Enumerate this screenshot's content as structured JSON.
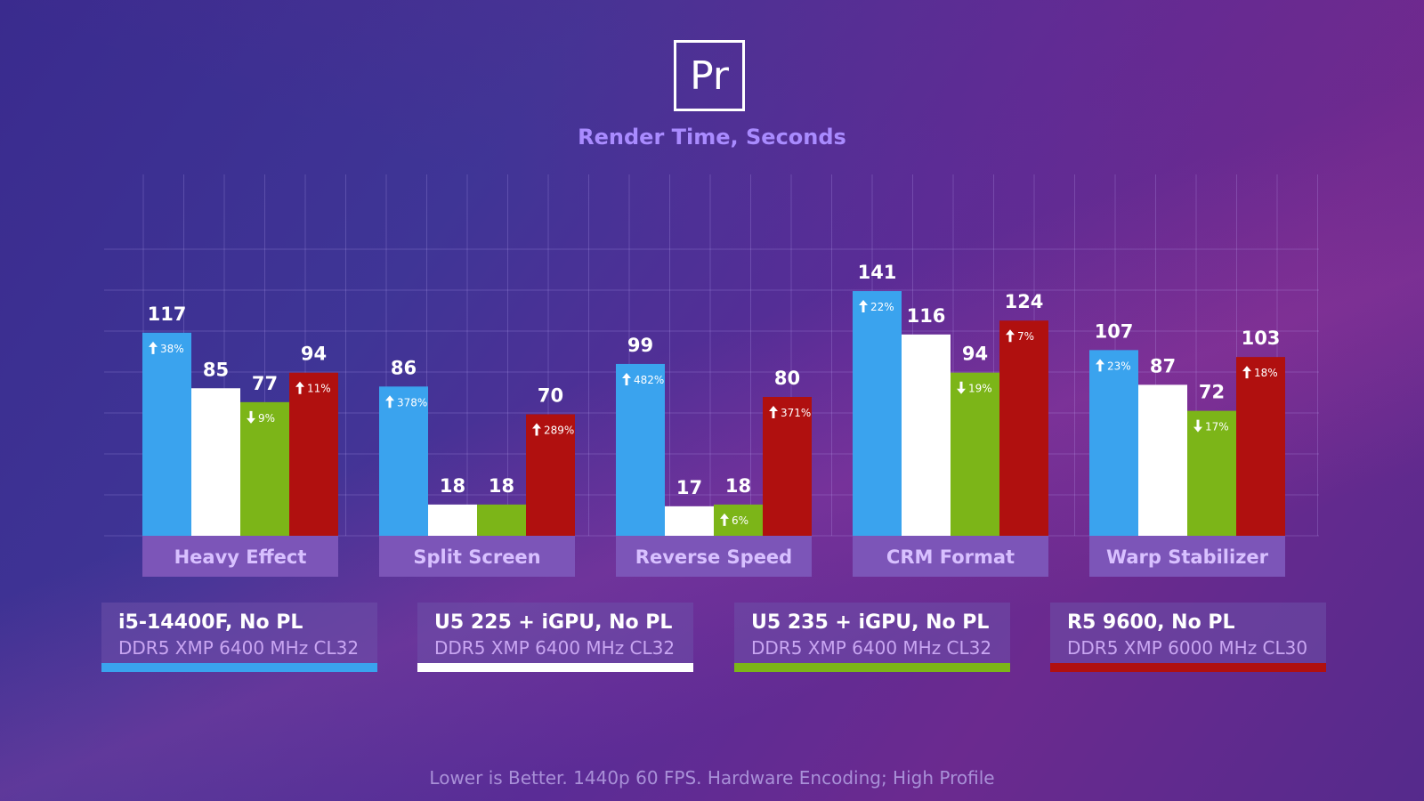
{
  "logo": {
    "text": "Pr"
  },
  "footnote": "Lower is Better. 1440p 60 FPS. Hardware Encoding; High Profile",
  "chart_data": {
    "type": "bar",
    "title": "Render Time, Seconds",
    "categories": [
      "Heavy Effect",
      "Split Screen",
      "Reverse Speed",
      "CRM Format",
      "Warp Stabilizer"
    ],
    "grid": true,
    "series": [
      {
        "name": "i5-14400F, No PL",
        "memory": "DDR5 XMP 6400 MHz CL32",
        "color": "#3aa3ee",
        "values": [
          117,
          86,
          99,
          141,
          107
        ],
        "deltas": [
          {
            "dir": "up",
            "pct": "38%"
          },
          {
            "dir": "up",
            "pct": "378%"
          },
          {
            "dir": "up",
            "pct": "482%"
          },
          {
            "dir": "up",
            "pct": "22%"
          },
          {
            "dir": "up",
            "pct": "23%"
          }
        ]
      },
      {
        "name": "U5 225 + iGPU, No PL",
        "memory": "DDR5 XMP 6400 MHz CL32",
        "color": "#ffffff",
        "values": [
          85,
          18,
          17,
          116,
          87
        ],
        "deltas": [
          null,
          null,
          null,
          null,
          null
        ]
      },
      {
        "name": "U5 235 + iGPU, No PL",
        "memory": "DDR5 XMP 6400 MHz CL32",
        "color": "#7cb518",
        "values": [
          77,
          18,
          18,
          94,
          72
        ],
        "deltas": [
          {
            "dir": "down",
            "pct": "9%"
          },
          null,
          {
            "dir": "up",
            "pct": "6%"
          },
          {
            "dir": "down",
            "pct": "19%"
          },
          {
            "dir": "down",
            "pct": "17%"
          }
        ]
      },
      {
        "name": "R5 9600, No PL",
        "memory": "DDR5 XMP 6000 MHz CL30",
        "color": "#b0100f",
        "values": [
          94,
          70,
          80,
          124,
          103
        ],
        "deltas": [
          {
            "dir": "up",
            "pct": "11%"
          },
          {
            "dir": "up",
            "pct": "289%"
          },
          {
            "dir": "up",
            "pct": "371%"
          },
          {
            "dir": "up",
            "pct": "7%"
          },
          {
            "dir": "up",
            "pct": "18%"
          }
        ]
      }
    ]
  }
}
